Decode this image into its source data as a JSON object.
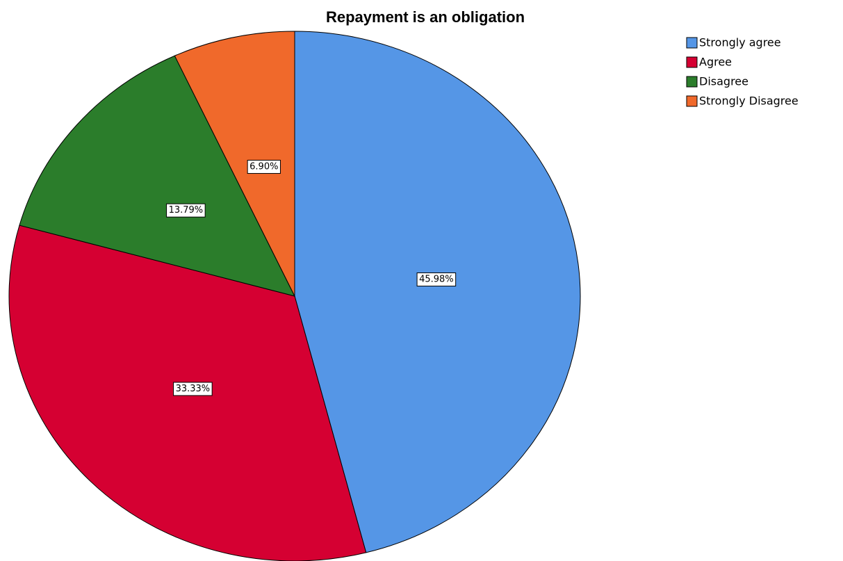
{
  "chart_data": {
    "type": "pie",
    "title": "Repayment is an obligation",
    "categories": [
      "Strongly agree",
      "Agree",
      "Disagree",
      "Strongly Disagree"
    ],
    "values": [
      45.98,
      33.33,
      13.79,
      6.9
    ],
    "value_labels": [
      "45.98%",
      "33.33%",
      "13.79%",
      "6.90%"
    ],
    "colors": [
      "#5596e6",
      "#d50032",
      "#2b7d2b",
      "#f0692b"
    ],
    "legend": "top-right"
  }
}
